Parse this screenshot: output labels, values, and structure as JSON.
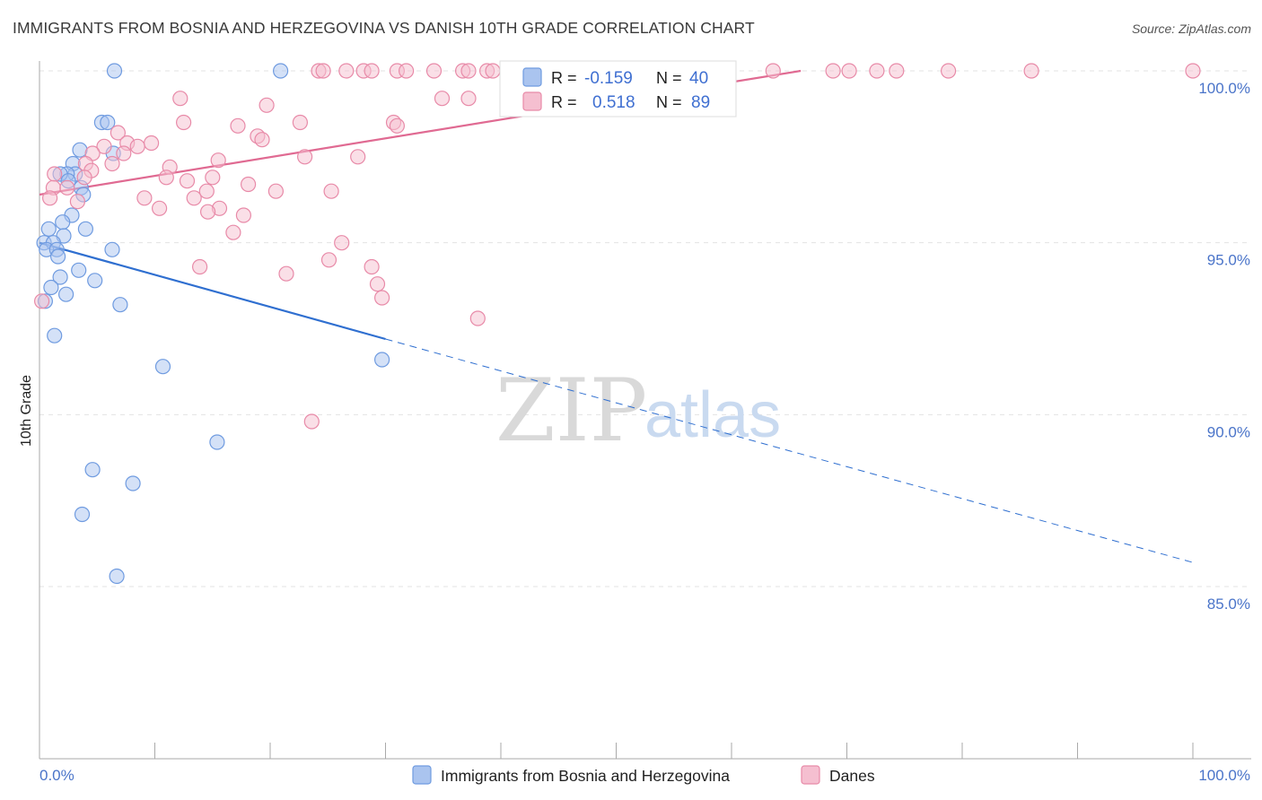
{
  "title": "IMMIGRANTS FROM BOSNIA AND HERZEGOVINA VS DANISH 10TH GRADE CORRELATION CHART",
  "source": "Source: ZipAtlas.com",
  "watermark": {
    "zip": "ZIP",
    "atlas": "atlas"
  },
  "colors": {
    "blue": "#6f9be0",
    "blue_fill": "#aac4ef",
    "blue_line": "#2f6fd0",
    "pink": "#e88aa8",
    "pink_fill": "#f5bfd0",
    "pink_line": "#e06a92",
    "axis_text": "#4a74c9"
  },
  "legend": {
    "r_label": "R =",
    "n_label": "N =",
    "rows": [
      {
        "r": "-0.159",
        "n": "40",
        "color": "blue"
      },
      {
        "r": "0.518",
        "n": "89",
        "color": "pink"
      }
    ]
  },
  "bottom_legend": [
    "Immigrants from Bosnia and Herzegovina",
    "Danes"
  ],
  "chart_data": {
    "type": "scatter",
    "title": "IMMIGRANTS FROM BOSNIA AND HERZEGOVINA VS DANISH 10TH GRADE CORRELATION CHART",
    "xlabel": "",
    "ylabel": "10th Grade",
    "xlim": [
      0,
      100
    ],
    "ylim": [
      80.5,
      100.4
    ],
    "x_ticks": [
      "0.0%",
      "100.0%"
    ],
    "y_ticks": [
      {
        "value": 100,
        "label": "100.0%"
      },
      {
        "value": 95,
        "label": "95.0%"
      },
      {
        "value": 90,
        "label": "90.0%"
      },
      {
        "value": 85,
        "label": "85.0%"
      }
    ],
    "grid": true,
    "legend_position": "top-center",
    "series": [
      {
        "name": "Immigrants from Bosnia and Herzegovina",
        "color": "blue",
        "points": [
          [
            6.5,
            100
          ],
          [
            20.9,
            100
          ],
          [
            5.4,
            98.5
          ],
          [
            5.9,
            98.5
          ],
          [
            3.5,
            97.7
          ],
          [
            6.4,
            97.6
          ],
          [
            2.9,
            97.3
          ],
          [
            3.1,
            97.0
          ],
          [
            2.4,
            97.0
          ],
          [
            1.8,
            97.0
          ],
          [
            2.5,
            96.8
          ],
          [
            3.6,
            96.6
          ],
          [
            3.8,
            96.4
          ],
          [
            2.8,
            95.8
          ],
          [
            2.0,
            95.6
          ],
          [
            0.8,
            95.4
          ],
          [
            4.0,
            95.4
          ],
          [
            2.1,
            95.2
          ],
          [
            0.4,
            95.0
          ],
          [
            1.2,
            95.0
          ],
          [
            0.6,
            94.8
          ],
          [
            1.5,
            94.8
          ],
          [
            6.3,
            94.8
          ],
          [
            1.6,
            94.6
          ],
          [
            3.4,
            94.2
          ],
          [
            1.8,
            94.0
          ],
          [
            4.8,
            93.9
          ],
          [
            1.0,
            93.7
          ],
          [
            2.3,
            93.5
          ],
          [
            0.5,
            93.3
          ],
          [
            7.0,
            93.2
          ],
          [
            1.3,
            92.3
          ],
          [
            10.7,
            91.4
          ],
          [
            29.7,
            91.6
          ],
          [
            15.4,
            89.2
          ],
          [
            4.6,
            88.4
          ],
          [
            8.1,
            88.0
          ],
          [
            3.7,
            87.1
          ],
          [
            6.7,
            85.3
          ]
        ],
        "trend": {
          "x": [
            0,
            30
          ],
          "y": [
            95.0,
            92.2
          ],
          "extended_x": [
            100
          ],
          "extended_y": [
            85.7
          ]
        }
      },
      {
        "name": "Danes",
        "color": "pink",
        "points": [
          [
            24.2,
            100
          ],
          [
            24.6,
            100
          ],
          [
            26.6,
            100
          ],
          [
            28.1,
            100
          ],
          [
            28.8,
            100
          ],
          [
            31.0,
            100
          ],
          [
            31.8,
            100
          ],
          [
            34.2,
            100
          ],
          [
            36.7,
            100
          ],
          [
            37.2,
            100
          ],
          [
            38.8,
            100
          ],
          [
            39.3,
            100
          ],
          [
            42.2,
            100
          ],
          [
            43.2,
            100
          ],
          [
            47.3,
            100
          ],
          [
            48.3,
            100
          ],
          [
            51.4,
            100
          ],
          [
            52.6,
            100
          ],
          [
            53.0,
            100
          ],
          [
            55.6,
            100
          ],
          [
            56.9,
            100
          ],
          [
            59.3,
            100
          ],
          [
            63.6,
            100
          ],
          [
            68.8,
            100
          ],
          [
            70.2,
            100
          ],
          [
            72.6,
            100
          ],
          [
            74.3,
            100
          ],
          [
            78.8,
            100
          ],
          [
            86.0,
            100
          ],
          [
            100,
            100
          ],
          [
            12.2,
            99.2
          ],
          [
            19.7,
            99.0
          ],
          [
            34.9,
            99.2
          ],
          [
            37.2,
            99.2
          ],
          [
            12.5,
            98.5
          ],
          [
            17.2,
            98.4
          ],
          [
            22.6,
            98.5
          ],
          [
            30.7,
            98.5
          ],
          [
            31.0,
            98.4
          ],
          [
            6.8,
            98.2
          ],
          [
            18.9,
            98.1
          ],
          [
            19.3,
            98.0
          ],
          [
            7.6,
            97.9
          ],
          [
            9.7,
            97.9
          ],
          [
            8.5,
            97.8
          ],
          [
            5.6,
            97.8
          ],
          [
            4.6,
            97.6
          ],
          [
            7.3,
            97.6
          ],
          [
            23.0,
            97.5
          ],
          [
            27.6,
            97.5
          ],
          [
            15.5,
            97.4
          ],
          [
            4.0,
            97.3
          ],
          [
            6.3,
            97.3
          ],
          [
            11.3,
            97.2
          ],
          [
            4.5,
            97.1
          ],
          [
            1.3,
            97.0
          ],
          [
            11.0,
            96.9
          ],
          [
            15.0,
            96.9
          ],
          [
            3.9,
            96.9
          ],
          [
            12.8,
            96.8
          ],
          [
            1.2,
            96.6
          ],
          [
            18.1,
            96.7
          ],
          [
            2.4,
            96.6
          ],
          [
            20.5,
            96.5
          ],
          [
            25.3,
            96.5
          ],
          [
            14.5,
            96.5
          ],
          [
            0.9,
            96.3
          ],
          [
            9.1,
            96.3
          ],
          [
            13.4,
            96.3
          ],
          [
            3.3,
            96.2
          ],
          [
            10.4,
            96.0
          ],
          [
            15.6,
            96.0
          ],
          [
            14.6,
            95.9
          ],
          [
            17.7,
            95.8
          ],
          [
            16.8,
            95.3
          ],
          [
            26.2,
            95.0
          ],
          [
            25.1,
            94.5
          ],
          [
            13.9,
            94.3
          ],
          [
            28.8,
            94.3
          ],
          [
            21.4,
            94.1
          ],
          [
            29.3,
            93.8
          ],
          [
            29.7,
            93.4
          ],
          [
            0.2,
            93.3
          ],
          [
            38.0,
            92.8
          ],
          [
            23.6,
            89.8
          ]
        ],
        "trend": {
          "x": [
            0,
            66
          ],
          "y": [
            96.4,
            100.0
          ]
        }
      }
    ]
  }
}
